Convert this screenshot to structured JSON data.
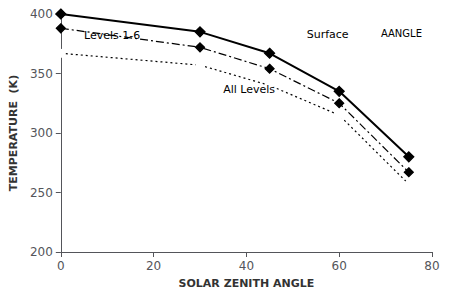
{
  "chart_data": {
    "type": "line",
    "xlabel": "SOLAR ZENITH ANGLE",
    "ylabel": "TEMPERATURE  (K)",
    "series": [
      {
        "x": [
          0,
          30,
          45,
          60,
          75
        ],
        "values": [
          400,
          385,
          367,
          335,
          280
        ],
        "color": "#000000",
        "marker": "diamond",
        "line_style": "solid"
      },
      {
        "x": [
          0,
          30,
          45,
          60,
          75
        ],
        "values": [
          388,
          372,
          354,
          325,
          267
        ],
        "color": "#000000",
        "marker": "diamond",
        "line_style": "dashdot"
      },
      {
        "x": [
          0,
          30,
          45,
          60,
          75
        ],
        "values": [
          367,
          357,
          340,
          315,
          257
        ],
        "color": "#000000",
        "marker": "open_circle",
        "line_style": "dotted"
      }
    ],
    "annotations": [
      {
        "text": "Surface",
        "x": 53,
        "y": 378
      },
      {
        "text": "Levels 1-6",
        "x": 5,
        "y": 377
      },
      {
        "text": "All Levels",
        "x": 35,
        "y": 332
      },
      {
        "text": "AANGLE"
      }
    ],
    "xlim": [
      0,
      80
    ],
    "xticks": [
      0,
      20,
      40,
      60,
      80
    ],
    "ylim": [
      200,
      400
    ],
    "yticks": [
      200,
      250,
      300,
      350,
      400
    ],
    "grid": false
  }
}
